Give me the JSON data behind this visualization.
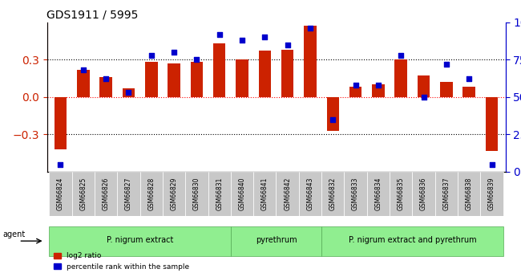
{
  "title": "GDS1911 / 5995",
  "samples": [
    "GSM66824",
    "GSM66825",
    "GSM66826",
    "GSM66827",
    "GSM66828",
    "GSM66829",
    "GSM66830",
    "GSM66831",
    "GSM66840",
    "GSM66841",
    "GSM66842",
    "GSM66843",
    "GSM66832",
    "GSM66833",
    "GSM66834",
    "GSM66835",
    "GSM66836",
    "GSM66837",
    "GSM66838",
    "GSM66839"
  ],
  "log2_ratio": [
    -0.42,
    0.22,
    0.16,
    0.07,
    0.28,
    0.27,
    0.28,
    0.43,
    0.3,
    0.37,
    0.38,
    0.57,
    -0.27,
    0.08,
    0.1,
    0.3,
    0.17,
    0.12,
    0.08,
    -0.43
  ],
  "percentile": [
    5,
    68,
    62,
    53,
    78,
    80,
    75,
    92,
    88,
    90,
    85,
    96,
    35,
    58,
    58,
    78,
    50,
    72,
    62,
    5
  ],
  "groups": [
    {
      "label": "P. nigrum extract",
      "start": 0,
      "end": 8,
      "color": "#90EE90"
    },
    {
      "label": "pyrethrum",
      "start": 8,
      "end": 12,
      "color": "#66CC66"
    },
    {
      "label": "P. nigrum extract and pyrethrum",
      "start": 12,
      "end": 20,
      "color": "#66CC66"
    }
  ],
  "ylim_left": [
    -0.6,
    0.6
  ],
  "ylim_right": [
    0,
    100
  ],
  "bar_color_red": "#CC2200",
  "dot_color_blue": "#0000CC",
  "background_color": "#ffffff",
  "grid_color": "#000000",
  "tick_color_left": "#CC2200",
  "tick_color_right": "#0000CC"
}
